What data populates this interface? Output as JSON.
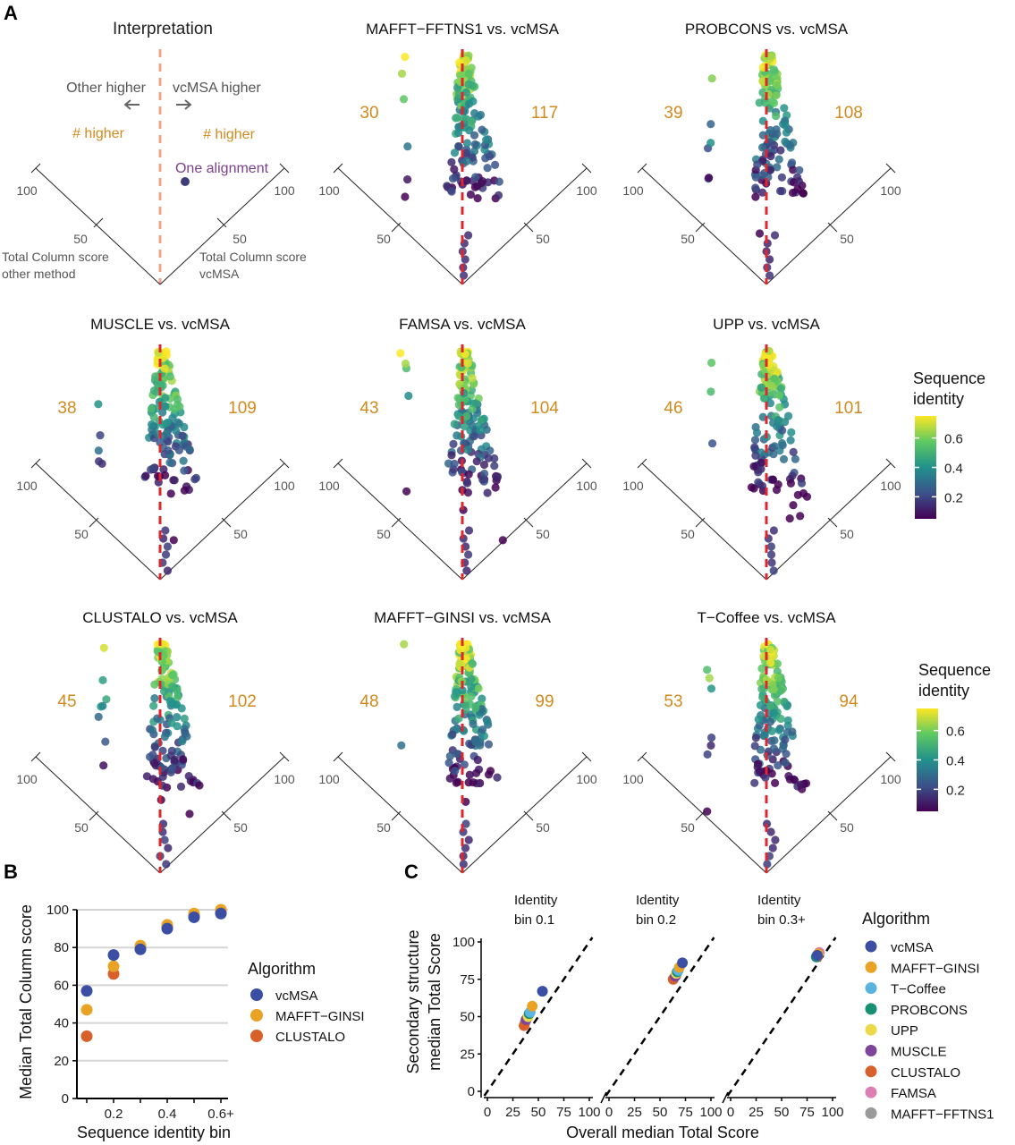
{
  "panel_letters": {
    "a": "A",
    "b": "B",
    "c": "C"
  },
  "interpretation": {
    "title": "Interpretation",
    "other_higher": "Other higher",
    "vcmsa_higher": "vcMSA higher",
    "n_higher_left": "# higher",
    "n_higher_right": "# higher",
    "one_alignment": "One alignment",
    "axis_100_left": "100",
    "axis_100_right": "100",
    "axis_50_left": "50",
    "axis_50_right": "50",
    "left_axis_label_1": "Total Column score",
    "left_axis_label_2": "other method",
    "right_axis_label_1": "Total Column score",
    "right_axis_label_2": "vcMSA",
    "colors": {
      "dashed_line": "#f0a58a",
      "point": "#3f3c7a"
    }
  },
  "colorbar": {
    "title_1": "Sequence",
    "title_2": "identity",
    "ticks": [
      "0.6",
      "0.4",
      "0.2"
    ],
    "tick_values": [
      0.6,
      0.4,
      0.2
    ],
    "range": [
      0.05,
      0.75
    ],
    "colors": [
      "#fde725",
      "#5ec962",
      "#21918c",
      "#3b528b",
      "#440154"
    ]
  },
  "chart_data": [
    {
      "type": "scatter",
      "title": "MAFFT−FFTNS1 vs. vcMSA",
      "count_other": "30",
      "count_vcmsa": "117",
      "axis_labels": [
        "100",
        "100",
        "50",
        "50"
      ],
      "description": "rotated diamond scatter of total column scores (other method vs. vcMSA), colored by sequence identity"
    },
    {
      "type": "scatter",
      "title": "PROBCONS vs. vcMSA",
      "count_other": "39",
      "count_vcmsa": "108",
      "axis_labels": [
        "100",
        "100",
        "50",
        "50"
      ]
    },
    {
      "type": "scatter",
      "title": "MUSCLE vs. vcMSA",
      "count_other": "38",
      "count_vcmsa": "109",
      "axis_labels": [
        "100",
        "100",
        "50",
        "50"
      ]
    },
    {
      "type": "scatter",
      "title": "FAMSA vs. vcMSA",
      "count_other": "43",
      "count_vcmsa": "104",
      "axis_labels": [
        "100",
        "100",
        "50",
        "50"
      ]
    },
    {
      "type": "scatter",
      "title": "UPP vs. vcMSA",
      "count_other": "46",
      "count_vcmsa": "101",
      "axis_labels": [
        "100",
        "100",
        "50",
        "50"
      ]
    },
    {
      "type": "scatter",
      "title": "CLUSTALO vs. vcMSA",
      "count_other": "45",
      "count_vcmsa": "102",
      "axis_labels": [
        "100",
        "100",
        "50",
        "50"
      ]
    },
    {
      "type": "scatter",
      "title": "MAFFT−GINSI vs. vcMSA",
      "count_other": "48",
      "count_vcmsa": "99",
      "axis_labels": [
        "100",
        "100",
        "50",
        "50"
      ]
    },
    {
      "type": "scatter",
      "title": "T−Coffee vs. vcMSA",
      "count_other": "53",
      "count_vcmsa": "94",
      "axis_labels": [
        "100",
        "100",
        "50",
        "50"
      ]
    },
    {
      "type": "scatter",
      "title": "",
      "xlabel": "Sequence identity bin",
      "ylabel": "Median Total Column score",
      "x_ticks": [
        "0.2",
        "0.4",
        "0.6+"
      ],
      "y_ticks": [
        "0",
        "20",
        "40",
        "60",
        "80",
        "100"
      ],
      "ylim": [
        0,
        100
      ],
      "x": [
        0.1,
        0.2,
        0.3,
        0.4,
        0.5,
        0.6
      ],
      "grid": true,
      "legend_title": "Algorithm",
      "series": [
        {
          "name": "vcMSA",
          "color": "#3a4fa3",
          "values": [
            57,
            76,
            79,
            90,
            96,
            98
          ]
        },
        {
          "name": "MAFFT−GINSI",
          "color": "#e8a224",
          "values": [
            47,
            70,
            81,
            92,
            98,
            100
          ]
        },
        {
          "name": "CLUSTALO",
          "color": "#d8602a",
          "values": [
            33,
            66,
            80,
            91,
            97,
            99
          ]
        }
      ]
    },
    {
      "type": "scatter",
      "xlabel": "Overall median Total Score",
      "ylabel_1": "Secondary structure",
      "ylabel_2": "median Total Score",
      "x_ticks": [
        "0",
        "25",
        "50",
        "75",
        "100"
      ],
      "y_ticks": [
        "0",
        "25",
        "50",
        "75",
        "100"
      ],
      "xlim": [
        0,
        100
      ],
      "ylim": [
        0,
        100
      ],
      "facets": [
        {
          "title_1": "Identity",
          "title_2": "bin 0.1"
        },
        {
          "title_1": "Identity",
          "title_2": "bin 0.2"
        },
        {
          "title_1": "Identity",
          "title_2": "bin 0.3+"
        }
      ],
      "legend_title": "Algorithm",
      "series": [
        {
          "name": "vcMSA",
          "color": "#3a4fa3",
          "points": [
            [
              54,
              67
            ],
            [
              72,
              86
            ],
            [
              85,
              91
            ]
          ]
        },
        {
          "name": "MAFFT−GINSI",
          "color": "#e8a224",
          "points": [
            [
              44,
              57
            ],
            [
              69,
              83
            ],
            [
              86,
              92
            ]
          ]
        },
        {
          "name": "T−Coffee",
          "color": "#5bb4e0",
          "points": [
            [
              42,
              53
            ],
            [
              68,
              81
            ],
            [
              85,
              91
            ]
          ]
        },
        {
          "name": "PROBCONS",
          "color": "#178f72",
          "points": [
            [
              41,
              52
            ],
            [
              67,
              80
            ],
            [
              84,
              90
            ]
          ]
        },
        {
          "name": "UPP",
          "color": "#ebd94a",
          "points": [
            [
              40,
              50
            ],
            [
              66,
              79
            ],
            [
              85,
              91
            ]
          ]
        },
        {
          "name": "MUSCLE",
          "color": "#7d459a",
          "points": [
            [
              38,
              48
            ],
            [
              65,
              77
            ],
            [
              86,
              92
            ]
          ]
        },
        {
          "name": "CLUSTALO",
          "color": "#d8602a",
          "points": [
            [
              36,
              44
            ],
            [
              63,
              75
            ],
            [
              85,
              90
            ]
          ]
        },
        {
          "name": "FAMSA",
          "color": "#dd7fb2",
          "points": [
            [
              39,
              49
            ],
            [
              66,
              78
            ],
            [
              87,
              93
            ]
          ]
        },
        {
          "name": "MAFFT−FFTNS1",
          "color": "#9a9a9a",
          "points": [
            [
              37,
              46
            ],
            [
              63,
              75
            ],
            [
              85,
              91
            ]
          ]
        }
      ]
    }
  ]
}
